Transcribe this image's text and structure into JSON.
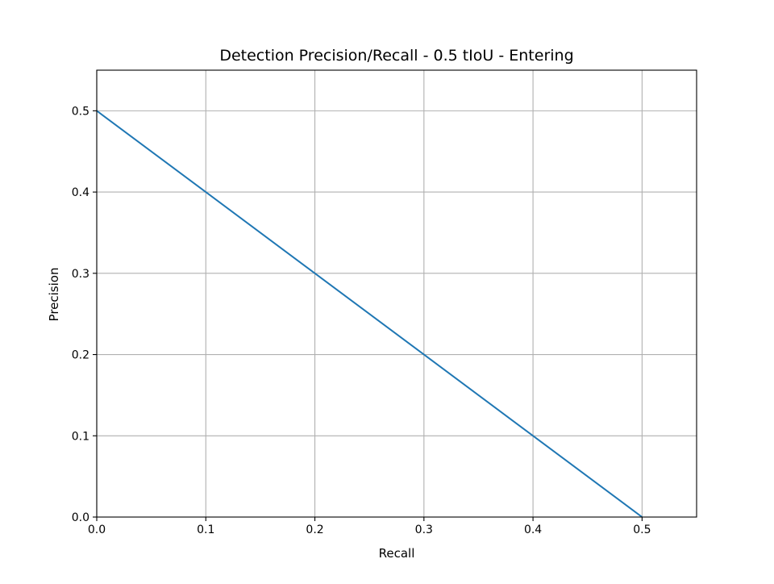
{
  "chart_data": {
    "type": "line",
    "title": "Detection Precision/Recall - 0.5 tIoU - Entering",
    "xlabel": "Recall",
    "ylabel": "Precision",
    "xlim": [
      0,
      0.55
    ],
    "ylim": [
      0,
      0.55
    ],
    "xticks": [
      0.0,
      0.1,
      0.2,
      0.3,
      0.4,
      0.5
    ],
    "yticks": [
      0.0,
      0.1,
      0.2,
      0.3,
      0.4,
      0.5
    ],
    "xtick_labels": [
      "0.0",
      "0.1",
      "0.2",
      "0.3",
      "0.4",
      "0.5"
    ],
    "ytick_labels": [
      "0.0",
      "0.1",
      "0.2",
      "0.3",
      "0.4",
      "0.5"
    ],
    "grid": true,
    "legend": false,
    "series": [
      {
        "color": "#1f77b4",
        "x": [
          0.0,
          0.5
        ],
        "y": [
          0.5,
          0.0
        ]
      }
    ]
  }
}
